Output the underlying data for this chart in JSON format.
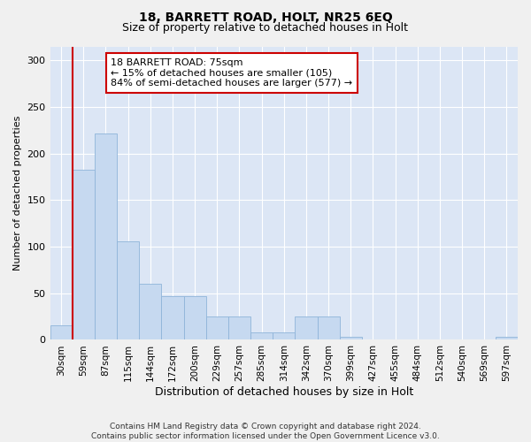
{
  "title1": "18, BARRETT ROAD, HOLT, NR25 6EQ",
  "title2": "Size of property relative to detached houses in Holt",
  "xlabel": "Distribution of detached houses by size in Holt",
  "ylabel": "Number of detached properties",
  "bar_labels": [
    "30sqm",
    "59sqm",
    "87sqm",
    "115sqm",
    "144sqm",
    "172sqm",
    "200sqm",
    "229sqm",
    "257sqm",
    "285sqm",
    "314sqm",
    "342sqm",
    "370sqm",
    "399sqm",
    "427sqm",
    "455sqm",
    "484sqm",
    "512sqm",
    "540sqm",
    "569sqm",
    "597sqm"
  ],
  "bar_values": [
    16,
    183,
    222,
    106,
    60,
    47,
    47,
    25,
    25,
    8,
    8,
    25,
    25,
    3,
    0,
    0,
    0,
    0,
    0,
    0,
    3
  ],
  "bar_color": "#c6d9f0",
  "bar_edge_color": "#8fb4d9",
  "bg_color": "#dce6f5",
  "grid_color": "#ffffff",
  "vline_x_bin": 1,
  "vline_color": "#cc0000",
  "annotation_text": "18 BARRETT ROAD: 75sqm\n← 15% of detached houses are smaller (105)\n84% of semi-detached houses are larger (577) →",
  "annotation_box_facecolor": "#ffffff",
  "annotation_box_edgecolor": "#cc0000",
  "footer_text": "Contains HM Land Registry data © Crown copyright and database right 2024.\nContains public sector information licensed under the Open Government Licence v3.0.",
  "ylim": [
    0,
    315
  ],
  "yticks": [
    0,
    50,
    100,
    150,
    200,
    250,
    300
  ],
  "fig_bg": "#f0f0f0"
}
